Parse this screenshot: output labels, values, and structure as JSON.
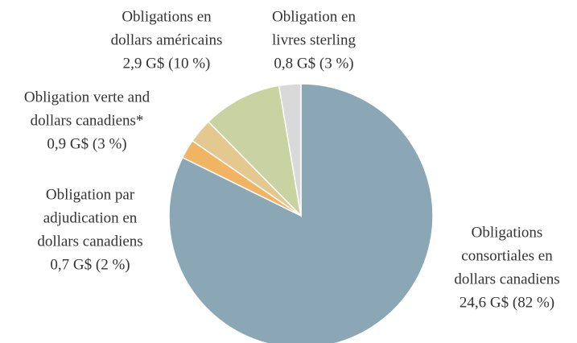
{
  "chart_data": {
    "type": "pie",
    "categories": [
      [
        "Obligations",
        "consortiales en",
        "dollars canadiens"
      ],
      [
        "Obligation par",
        "adjudication en",
        "dollars canadiens"
      ],
      [
        "Obligation verte and",
        "dollars canadiens*"
      ],
      [
        "Obligations en",
        "dollars américains"
      ],
      [
        "Obligation en",
        "livres sterling"
      ]
    ],
    "values": [
      24.6,
      0.7,
      0.9,
      2.9,
      0.8
    ],
    "value_labels": [
      "24,6 G$ (82 %)",
      "0,7 G$ (2 %)",
      "0,9 G$ (3 %)",
      "2,9 G$ (10 %)",
      "0,8 G$ (3 %)"
    ],
    "colors": [
      "#8ba6b4",
      "#f0b462",
      "#e3c98f",
      "#c9d2a1",
      "#d9d9d9"
    ]
  }
}
